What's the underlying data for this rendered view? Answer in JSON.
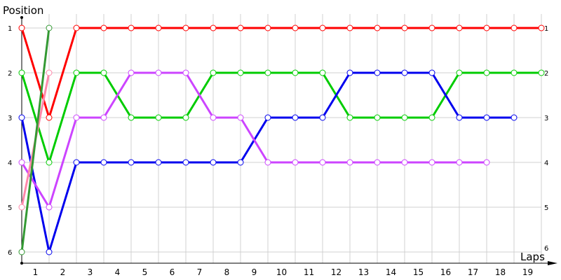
{
  "chart_data": {
    "type": "line",
    "ylabel": "Position",
    "xlabel": "Laps",
    "x_tick_labels": [
      "1",
      "2",
      "3",
      "4",
      "5",
      "6",
      "7",
      "8",
      "9",
      "10",
      "11",
      "12",
      "13",
      "14",
      "15",
      "16",
      "17",
      "18",
      "19"
    ],
    "y_tick_labels": [
      "1",
      "2",
      "3",
      "4",
      "5",
      "6"
    ],
    "xlim": [
      0,
      19
    ],
    "ylim": [
      1,
      6
    ],
    "y_inverted": true,
    "grid": true,
    "markers": "hollow-circle",
    "series": [
      {
        "color": "#ff0000",
        "values": [
          1,
          3,
          1,
          1,
          1,
          1,
          1,
          1,
          1,
          1,
          1,
          1,
          1,
          1,
          1,
          1,
          1,
          1,
          1,
          1
        ]
      },
      {
        "color": "#00cc00",
        "values": [
          2,
          4,
          2,
          2,
          3,
          3,
          3,
          2,
          2,
          2,
          2,
          2,
          3,
          3,
          3,
          3,
          2,
          2,
          2,
          2
        ]
      },
      {
        "color": "#0000ee",
        "values": [
          3,
          6,
          4,
          4,
          4,
          4,
          4,
          4,
          4,
          3,
          3,
          3,
          2,
          2,
          2,
          2,
          3,
          3,
          3
        ]
      },
      {
        "color": "#cc44ff",
        "values": [
          4,
          5,
          3,
          3,
          2,
          2,
          2,
          3,
          3,
          4,
          4,
          4,
          4,
          4,
          4,
          4,
          4,
          4
        ]
      },
      {
        "color": "#ff88aa",
        "values": [
          5,
          2
        ]
      },
      {
        "color": "#339933",
        "values": [
          6,
          1
        ]
      }
    ]
  }
}
